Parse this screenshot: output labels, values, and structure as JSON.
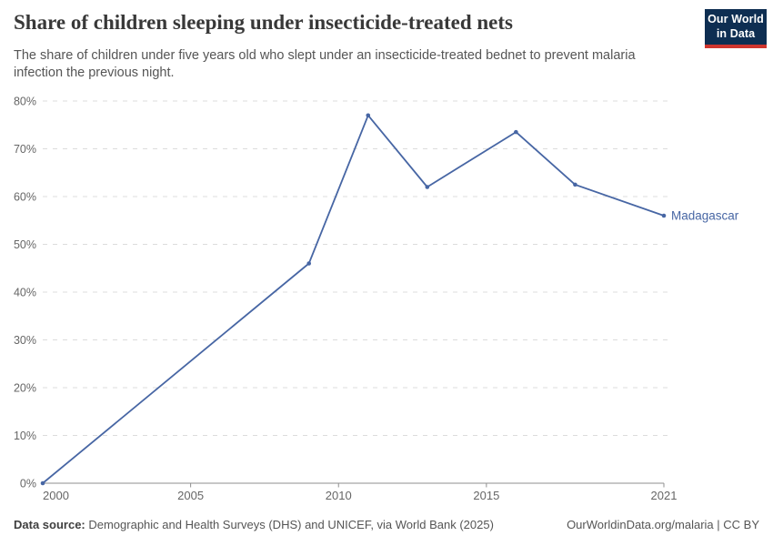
{
  "header": {
    "title": "Share of children sleeping under insecticide-treated nets",
    "subtitle": "The share of children under five years old who slept under an insecticide-treated bednet to prevent malaria infection the previous night.",
    "logo": {
      "line1": "Our World",
      "line2": "in Data"
    }
  },
  "chart_data": {
    "type": "line",
    "title": "Share of children sleeping under insecticide-treated nets",
    "xlabel": "",
    "ylabel": "",
    "xlim": [
      2000,
      2021
    ],
    "ylim": [
      0,
      80
    ],
    "xticks": [
      2000,
      2005,
      2010,
      2015,
      2021
    ],
    "yticks": [
      0,
      10,
      20,
      30,
      40,
      50,
      60,
      70,
      80
    ],
    "ytick_suffix": "%",
    "grid": "dashed-horizontal",
    "legend_position": "end-of-line-label",
    "series": [
      {
        "name": "Madagascar",
        "color": "#4766a4",
        "x": [
          2000,
          2009,
          2011,
          2013,
          2016,
          2018,
          2021
        ],
        "values": [
          0,
          46,
          77,
          62,
          73.5,
          62.5,
          56
        ]
      }
    ]
  },
  "colors": {
    "line": "#4766a4",
    "gridline": "#dcdcdc",
    "axis": "#8f8f8f",
    "tick_label": "#666666",
    "logo_bg": "#0e2e52",
    "logo_bar": "#cf352e"
  },
  "footer": {
    "source_label": "Data source:",
    "source_text": " Demographic and Health Surveys (DHS) and UNICEF, via World Bank (2025)",
    "link_text": "OurWorldinData.org/malaria | CC BY"
  }
}
